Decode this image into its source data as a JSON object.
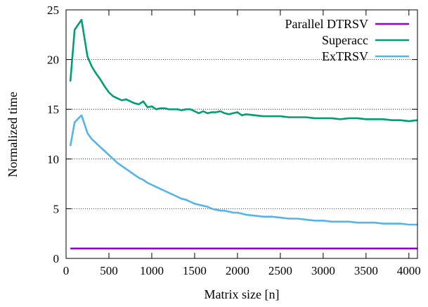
{
  "chart_data": {
    "type": "line",
    "xlabel": "Matrix size [n]",
    "ylabel": "Normalized time",
    "xlim": [
      0,
      4100
    ],
    "ylim": [
      0,
      25
    ],
    "xticks": [
      0,
      500,
      1000,
      1500,
      2000,
      2500,
      3000,
      3500,
      4000
    ],
    "yticks": [
      0,
      5,
      10,
      15,
      20,
      25
    ],
    "grid": "horizontal-dotted",
    "legend_position": "top-right",
    "series": [
      {
        "name": "Parallel DTRSV",
        "color": "#9400d3",
        "x": [
          50,
          4100
        ],
        "y": [
          1,
          1
        ]
      },
      {
        "name": "Superacc",
        "color": "#009e73",
        "x": [
          50,
          100,
          180,
          250,
          300,
          350,
          400,
          450,
          500,
          550,
          600,
          650,
          700,
          750,
          800,
          850,
          900,
          950,
          1000,
          1050,
          1100,
          1150,
          1200,
          1250,
          1300,
          1350,
          1400,
          1450,
          1500,
          1550,
          1600,
          1650,
          1700,
          1750,
          1800,
          1850,
          1900,
          1950,
          2000,
          2050,
          2100,
          2200,
          2300,
          2400,
          2500,
          2600,
          2700,
          2800,
          2900,
          3000,
          3100,
          3200,
          3300,
          3400,
          3500,
          3600,
          3700,
          3800,
          3900,
          4000,
          4100
        ],
        "y": [
          17.8,
          23.0,
          24.0,
          20.3,
          19.3,
          18.6,
          18.0,
          17.3,
          16.7,
          16.3,
          16.1,
          15.9,
          16.0,
          15.8,
          15.6,
          15.5,
          15.8,
          15.2,
          15.3,
          15.0,
          15.1,
          15.1,
          15.0,
          15.0,
          15.0,
          14.9,
          15.0,
          15.0,
          14.8,
          14.6,
          14.8,
          14.6,
          14.7,
          14.7,
          14.8,
          14.6,
          14.5,
          14.6,
          14.7,
          14.4,
          14.5,
          14.4,
          14.3,
          14.3,
          14.3,
          14.2,
          14.2,
          14.2,
          14.1,
          14.1,
          14.1,
          14.0,
          14.1,
          14.1,
          14.0,
          14.0,
          14.0,
          13.9,
          13.9,
          13.8,
          13.9
        ]
      },
      {
        "name": "ExTRSV",
        "color": "#56b4e9",
        "x": [
          50,
          100,
          180,
          250,
          300,
          350,
          400,
          450,
          500,
          550,
          600,
          650,
          700,
          750,
          800,
          850,
          900,
          950,
          1000,
          1050,
          1100,
          1150,
          1200,
          1250,
          1300,
          1350,
          1400,
          1450,
          1500,
          1550,
          1600,
          1650,
          1700,
          1750,
          1800,
          1850,
          1900,
          1950,
          2000,
          2100,
          2200,
          2300,
          2400,
          2500,
          2600,
          2700,
          2800,
          2900,
          3000,
          3100,
          3200,
          3300,
          3400,
          3500,
          3600,
          3700,
          3800,
          3900,
          4000,
          4100
        ],
        "y": [
          11.3,
          13.7,
          14.4,
          12.6,
          12.0,
          11.6,
          11.2,
          10.8,
          10.4,
          10.0,
          9.6,
          9.3,
          9.0,
          8.7,
          8.4,
          8.1,
          7.9,
          7.6,
          7.4,
          7.2,
          7.0,
          6.8,
          6.6,
          6.4,
          6.2,
          6.0,
          5.9,
          5.7,
          5.5,
          5.4,
          5.3,
          5.2,
          5.0,
          4.9,
          4.8,
          4.8,
          4.7,
          4.6,
          4.6,
          4.4,
          4.3,
          4.2,
          4.2,
          4.1,
          4.0,
          4.0,
          3.9,
          3.8,
          3.8,
          3.7,
          3.7,
          3.7,
          3.6,
          3.6,
          3.6,
          3.5,
          3.5,
          3.5,
          3.4,
          3.4
        ]
      }
    ]
  }
}
